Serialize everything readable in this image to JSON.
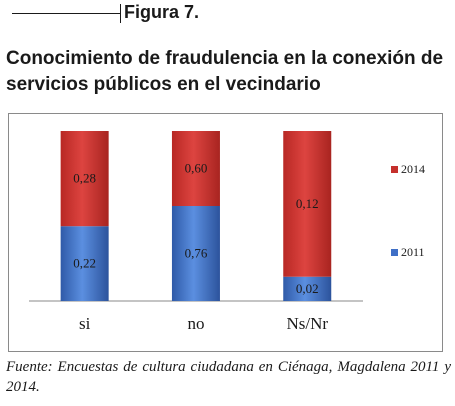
{
  "figure_label": "Figura 7.",
  "title": "Conocimiento de fraudulencia en la conexión de servicios públicos en el vecindario",
  "source": "Fuente: Encuestas de cultura ciudadana en Ciénaga, Magdalena 2011 y 2014.",
  "chart_data": {
    "type": "bar",
    "stacked": true,
    "categories": [
      "si",
      "no",
      "Ns/Nr"
    ],
    "series": [
      {
        "name": "2011",
        "values": [
          0.22,
          0.76,
          0.02
        ],
        "labels": [
          "0,22",
          "0,76",
          "0,02"
        ],
        "color": "#3f6fc6"
      },
      {
        "name": "2014",
        "values": [
          0.28,
          0.6,
          0.12
        ],
        "labels": [
          "0,28",
          "0,60",
          "0,12"
        ],
        "color": "#c5302c"
      }
    ],
    "legend": {
      "position": "right",
      "order": [
        "2014",
        "2011"
      ]
    },
    "grid": false
  }
}
